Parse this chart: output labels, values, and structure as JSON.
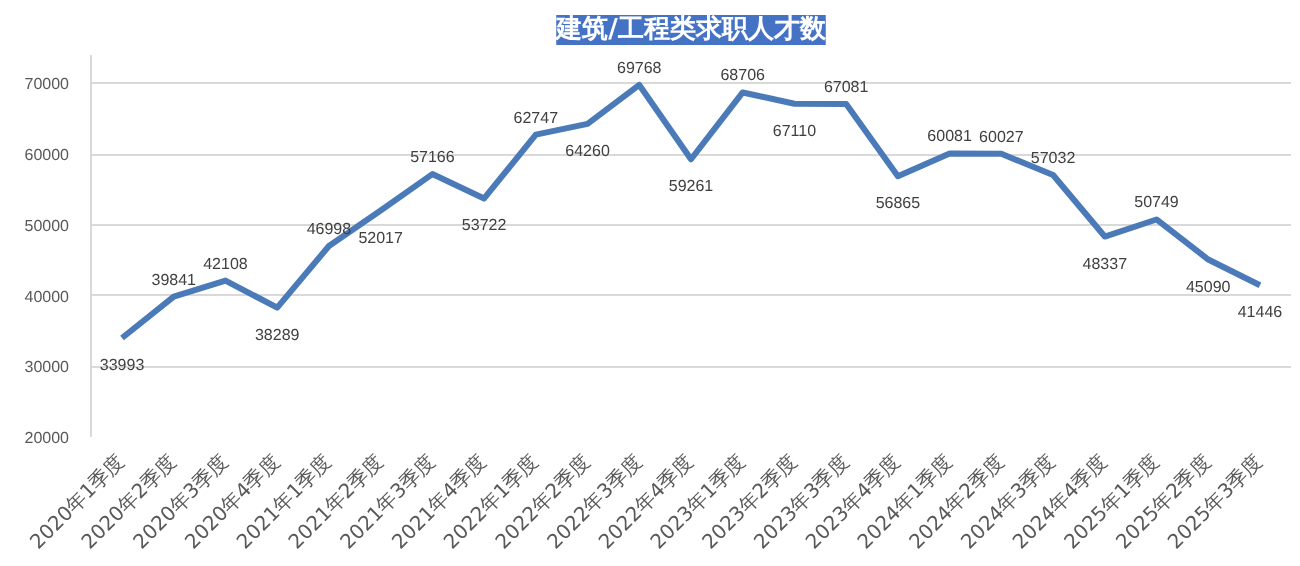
{
  "chart_data": {
    "type": "line",
    "title": "建筑/工程类求职人才数",
    "categories": [
      "2020年1季度",
      "2020年2季度",
      "2020年3季度",
      "2020年4季度",
      "2021年1季度",
      "2021年2季度",
      "2021年3季度",
      "2021年4季度",
      "2022年1季度",
      "2022年2季度",
      "2022年3季度",
      "2022年4季度",
      "2023年1季度",
      "2023年2季度",
      "2023年3季度",
      "2023年4季度",
      "2024年1季度",
      "2024年2季度",
      "2024年3季度",
      "2024年4季度",
      "2025年1季度",
      "2025年2季度",
      "2025年3季度"
    ],
    "values": [
      33993,
      39841,
      42108,
      38289,
      46998,
      52017,
      57166,
      53722,
      62747,
      64260,
      69768,
      59261,
      68706,
      67110,
      67081,
      56865,
      60081,
      60027,
      57032,
      48337,
      50749,
      45090,
      41446
    ],
    "color": "#4a7ab8",
    "ylim": [
      20000,
      74000
    ],
    "yticks": [
      20000,
      30000,
      40000,
      50000,
      60000,
      70000
    ],
    "grid": "y",
    "data_labels": true,
    "marker": "none",
    "line_style": "solid"
  }
}
